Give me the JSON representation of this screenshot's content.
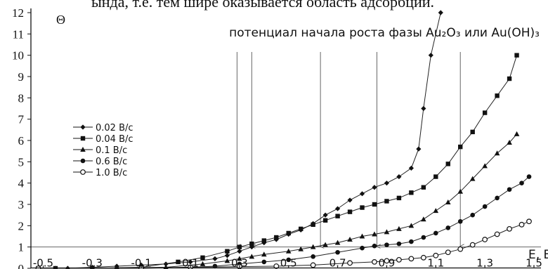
{
  "page_top_text": "ында, т.е. тем шире оказывается область адсорбции.",
  "chart_data": {
    "type": "line",
    "ylabel": "Θ",
    "xlabel": "E, В",
    "xlim": [
      -0.55,
      1.5
    ],
    "ylim": [
      0,
      12
    ],
    "x_ticks": [
      "-0.5",
      "-0.3",
      "-0.1",
      "0.1",
      "0.3",
      "0.5",
      "0.7",
      "0.9",
      "1.1",
      "1.3",
      "1.5"
    ],
    "y_ticks": [
      "0",
      "1",
      "2",
      "3",
      "4",
      "5",
      "6",
      "7",
      "8",
      "9",
      "10",
      "11",
      "12"
    ],
    "grid": false,
    "legend_position": "left",
    "reference_line_y": 1,
    "annotation": {
      "text": "потенциал начала роста фазы Au₂O₃ или Au(OH)₃",
      "arrow_x": [
        0.29,
        0.35,
        0.63,
        0.86,
        1.2
      ]
    },
    "series": [
      {
        "name": "0.02 В/с",
        "marker": "diamond",
        "x": [
          -0.52,
          -0.45,
          -0.4,
          -0.3,
          -0.2,
          -0.1,
          0,
          0.1,
          0.2,
          0.25,
          0.3,
          0.35,
          0.4,
          0.45,
          0.5,
          0.55,
          0.6,
          0.65,
          0.7,
          0.75,
          0.8,
          0.85,
          0.9,
          0.95,
          1.0,
          1.03,
          1.05,
          1.08,
          1.12
        ],
        "y": [
          0,
          0,
          0,
          0.05,
          0.1,
          0.15,
          0.2,
          0.3,
          0.45,
          0.6,
          0.8,
          1.0,
          1.2,
          1.35,
          1.6,
          1.8,
          2.1,
          2.5,
          2.8,
          3.2,
          3.5,
          3.8,
          4.0,
          4.3,
          4.7,
          5.6,
          7.5,
          10.0,
          12.0
        ]
      },
      {
        "name": "0.04 В/с",
        "marker": "square",
        "x": [
          -0.52,
          -0.45,
          -0.3,
          -0.1,
          0.05,
          0.15,
          0.25,
          0.3,
          0.35,
          0.4,
          0.45,
          0.5,
          0.55,
          0.6,
          0.65,
          0.7,
          0.75,
          0.8,
          0.85,
          0.9,
          0.95,
          1.0,
          1.05,
          1.1,
          1.15,
          1.2,
          1.25,
          1.3,
          1.35,
          1.4,
          1.43
        ],
        "y": [
          0,
          0,
          0,
          0.05,
          0.3,
          0.5,
          0.8,
          1.0,
          1.15,
          1.3,
          1.45,
          1.65,
          1.85,
          2.05,
          2.25,
          2.45,
          2.65,
          2.85,
          3.0,
          3.15,
          3.3,
          3.55,
          3.8,
          4.3,
          4.9,
          5.7,
          6.4,
          7.3,
          8.1,
          8.9,
          10.0
        ]
      },
      {
        "name": "0.1 В/с",
        "marker": "triangle",
        "x": [
          -0.52,
          -0.3,
          0.0,
          0.15,
          0.25,
          0.3,
          0.35,
          0.4,
          0.5,
          0.55,
          0.6,
          0.65,
          0.7,
          0.75,
          0.8,
          0.85,
          0.9,
          0.95,
          1.0,
          1.05,
          1.1,
          1.15,
          1.2,
          1.25,
          1.3,
          1.35,
          1.4,
          1.43
        ],
        "y": [
          0,
          0,
          0.05,
          0.2,
          0.35,
          0.45,
          0.55,
          0.65,
          0.8,
          0.9,
          1.0,
          1.1,
          1.2,
          1.35,
          1.5,
          1.6,
          1.7,
          1.85,
          2.0,
          2.3,
          2.7,
          3.1,
          3.6,
          4.2,
          4.8,
          5.4,
          5.9,
          6.3
        ]
      },
      {
        "name": "0.6 В/с",
        "marker": "circle",
        "x": [
          -0.52,
          -0.2,
          0.1,
          0.2,
          0.3,
          0.4,
          0.5,
          0.6,
          0.7,
          0.8,
          0.85,
          0.9,
          0.95,
          1.0,
          1.05,
          1.1,
          1.15,
          1.2,
          1.25,
          1.3,
          1.35,
          1.4,
          1.45,
          1.48
        ],
        "y": [
          0,
          0,
          0.05,
          0.1,
          0.2,
          0.3,
          0.4,
          0.55,
          0.75,
          0.95,
          1.05,
          1.1,
          1.15,
          1.25,
          1.45,
          1.65,
          1.9,
          2.2,
          2.5,
          2.9,
          3.3,
          3.7,
          4.0,
          4.3
        ]
      },
      {
        "name": "1.0 В/с",
        "marker": "open-circle",
        "x": [
          -0.52,
          -0.1,
          0.1,
          0.3,
          0.45,
          0.6,
          0.75,
          0.85,
          0.9,
          0.95,
          1.0,
          1.05,
          1.1,
          1.15,
          1.2,
          1.25,
          1.3,
          1.35,
          1.4,
          1.45,
          1.48
        ],
        "y": [
          0,
          0,
          0.05,
          0.08,
          0.1,
          0.15,
          0.25,
          0.3,
          0.35,
          0.4,
          0.45,
          0.5,
          0.6,
          0.75,
          0.9,
          1.1,
          1.35,
          1.6,
          1.85,
          2.05,
          2.2
        ]
      }
    ]
  }
}
